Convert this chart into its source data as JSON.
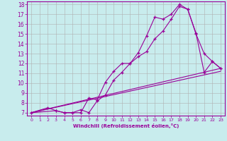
{
  "xlabel": "Windchill (Refroidissement éolien,°C)",
  "bg_color": "#c8eced",
  "line_color": "#990099",
  "grid_color": "#b0b0b0",
  "xlim": [
    -0.5,
    23.5
  ],
  "ylim": [
    6.7,
    18.3
  ],
  "yticks": [
    7,
    8,
    9,
    10,
    11,
    12,
    13,
    14,
    15,
    16,
    17,
    18
  ],
  "xticks": [
    0,
    1,
    2,
    3,
    4,
    5,
    6,
    7,
    8,
    9,
    10,
    11,
    12,
    13,
    14,
    15,
    16,
    17,
    18,
    19,
    20,
    21,
    22,
    23
  ],
  "line1_x": [
    0,
    2,
    3,
    4,
    5,
    6,
    7,
    8,
    9,
    10,
    11,
    12,
    13,
    14,
    15,
    16,
    17,
    18,
    19,
    20,
    21,
    22,
    23
  ],
  "line1_y": [
    7.0,
    7.5,
    7.2,
    7.0,
    7.0,
    7.0,
    8.5,
    8.3,
    10.1,
    11.2,
    12.0,
    12.0,
    13.1,
    14.8,
    16.7,
    16.5,
    17.0,
    18.0,
    17.5,
    15.0,
    13.0,
    12.2,
    11.5
  ],
  "line2_x": [
    0,
    3,
    4,
    5,
    6,
    7,
    8,
    9,
    10,
    11,
    12,
    13,
    14,
    15,
    16,
    17,
    18,
    19,
    20,
    21,
    22,
    23
  ],
  "line2_y": [
    7.0,
    7.2,
    7.0,
    7.0,
    7.3,
    7.0,
    8.2,
    8.8,
    10.3,
    11.1,
    12.0,
    12.7,
    13.2,
    14.5,
    15.3,
    16.5,
    17.8,
    17.5,
    15.1,
    11.1,
    12.2,
    11.5
  ],
  "line3_x": [
    0,
    23
  ],
  "line3_y": [
    7.0,
    11.5
  ],
  "line4_x": [
    0,
    23
  ],
  "line4_y": [
    7.0,
    11.2
  ]
}
